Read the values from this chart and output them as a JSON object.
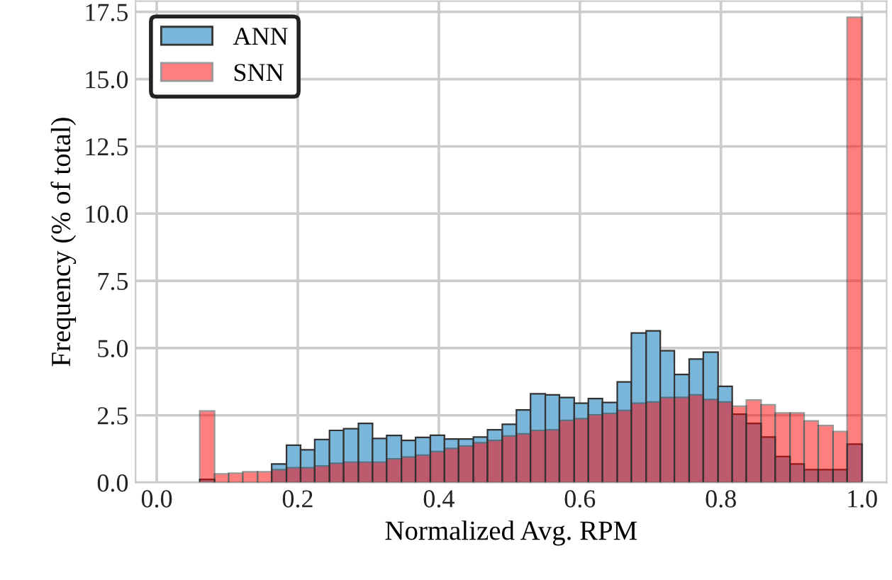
{
  "chart_data": {
    "type": "histogram",
    "xlabel": "Normalized Avg. RPM",
    "ylabel": "Frequency (% of total)",
    "bins": [
      0.061,
      0.082,
      0.102,
      0.122,
      0.143,
      0.163,
      0.184,
      0.204,
      0.224,
      0.245,
      0.265,
      0.286,
      0.306,
      0.326,
      0.347,
      0.367,
      0.388,
      0.408,
      0.428,
      0.449,
      0.469,
      0.49,
      0.51,
      0.53,
      0.551,
      0.571,
      0.592,
      0.612,
      0.632,
      0.653,
      0.673,
      0.694,
      0.714,
      0.734,
      0.755,
      0.775,
      0.796,
      0.816,
      0.836,
      0.857,
      0.877,
      0.898,
      0.918,
      0.938,
      0.959,
      0.979,
      1.0
    ],
    "series": [
      {
        "name": "ANN",
        "color": "#7ab5da",
        "values": [
          0.12,
          0,
          0,
          0,
          0,
          0.69,
          1.39,
          1.22,
          1.6,
          1.94,
          2.0,
          2.2,
          1.64,
          1.75,
          1.57,
          1.68,
          1.76,
          1.62,
          1.62,
          1.69,
          1.96,
          2.17,
          2.7,
          3.3,
          3.26,
          3.16,
          2.95,
          3.12,
          2.98,
          3.74,
          5.56,
          5.64,
          4.9,
          4.02,
          4.59,
          4.85,
          3.58,
          2.54,
          2.2,
          1.69,
          0.97,
          0.69,
          0.48,
          0.48,
          0.48,
          1.43
        ]
      },
      {
        "name": "SNN",
        "color": "#ff7f7f",
        "values": [
          2.66,
          0.32,
          0.35,
          0.4,
          0.4,
          0.48,
          0.55,
          0.55,
          0.62,
          0.72,
          0.76,
          0.76,
          0.76,
          0.88,
          0.95,
          1.02,
          1.15,
          1.27,
          1.36,
          1.48,
          1.57,
          1.73,
          1.81,
          1.94,
          1.96,
          2.31,
          2.38,
          2.52,
          2.57,
          2.68,
          2.95,
          3.0,
          3.16,
          3.17,
          3.26,
          3.09,
          3.0,
          2.84,
          3.07,
          2.89,
          2.59,
          2.59,
          2.29,
          2.12,
          1.9,
          17.3
        ]
      }
    ],
    "xlim": [
      -0.03,
      1.035
    ],
    "ylim": [
      0,
      17.9
    ],
    "xticks": [
      {
        "value": 0,
        "label": "0.0"
      },
      0.2,
      0.4,
      0.6,
      0.8,
      {
        "value": 1,
        "label": "1.0"
      }
    ],
    "yticks": [
      {
        "value": 0,
        "label": "0.0"
      },
      2.5,
      {
        "value": 5,
        "label": "5.0"
      },
      7.5,
      {
        "value": 10,
        "label": "10.0"
      },
      12.5,
      {
        "value": 15,
        "label": "15.0"
      },
      17.5
    ],
    "grid": true,
    "legend": "top left"
  }
}
